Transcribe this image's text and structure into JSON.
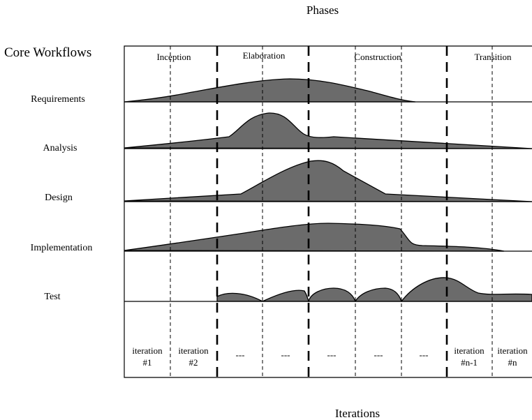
{
  "title_phases": "Phases",
  "title_workflows": "Core Workflows",
  "title_iterations": "Iterations",
  "phases": [
    "Inception",
    "Elaboration",
    "Construction",
    "Transition"
  ],
  "workflows": [
    "Requirements",
    "Analysis",
    "Design",
    "Implementation",
    "Test"
  ],
  "iterations": [
    {
      "line1": "iteration",
      "line2": "#1"
    },
    {
      "line1": "iteration",
      "line2": "#2"
    },
    {
      "line1": "---",
      "line2": ""
    },
    {
      "line1": "---",
      "line2": ""
    },
    {
      "line1": "---",
      "line2": ""
    },
    {
      "line1": "---",
      "line2": ""
    },
    {
      "line1": "---",
      "line2": ""
    },
    {
      "line1": "iteration",
      "line2": "#n-1"
    },
    {
      "line1": "iteration",
      "line2": "#n"
    }
  ]
}
